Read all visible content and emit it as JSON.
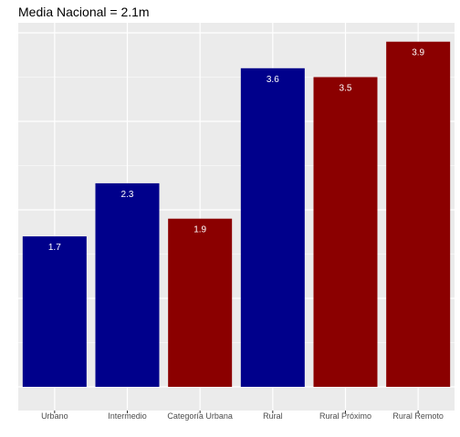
{
  "chart_data": {
    "type": "bar",
    "title": "Media Nacional = 2.1m",
    "xlabel": "",
    "ylabel": "",
    "categories": [
      "Urbano",
      "Intermedio",
      "Categoría Urbana",
      "Rural",
      "Rural Próximo",
      "Rural Remoto"
    ],
    "values": [
      1.7,
      2.3,
      1.9,
      3.6,
      3.5,
      3.9
    ],
    "value_labels": [
      "1.7",
      "2.3",
      "1.9",
      "3.6",
      "3.5",
      "3.9"
    ],
    "bar_colors": [
      "#00008b",
      "#00008b",
      "#8b0000",
      "#00008b",
      "#8b0000",
      "#8b0000"
    ],
    "ylim": [
      0,
      4.1
    ],
    "y_ticks_shown": false,
    "grid": true,
    "panel_background": "#ebebeb",
    "grid_color": "#ffffff"
  }
}
